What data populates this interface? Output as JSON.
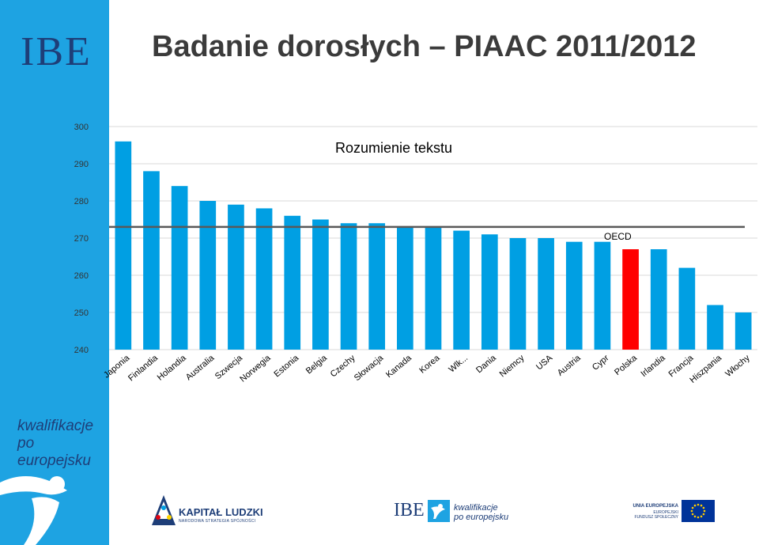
{
  "slide": {
    "title": "Badanie dorosłych – PIAAC 2011/2012",
    "logo_text": "IBE",
    "brand_line1": "kwalifikacje",
    "brand_line2": "po europejsku"
  },
  "footer": {
    "kapital_title": "KAPITAŁ LUDZKI",
    "kapital_sub": "NARODOWA STRATEGIA SPÓJNOŚCI",
    "ibe_text": "IBE",
    "kp_line1": "kwalifikacje",
    "kp_line2": "po europejsku",
    "ue_title": "UNIA EUROPEJSKA",
    "ue_line1": "EUROPEJSKI",
    "ue_line2": "FUNDUSZ SPOŁECZNY"
  },
  "colors": {
    "bar": "#009fe3",
    "highlight": "#ff0000",
    "oecd_line": "#595959",
    "sidebar": "#1ea3e2",
    "brand": "#1e3e78"
  },
  "chart_data": {
    "type": "bar",
    "title": "Rozumienie tekstu",
    "categories": [
      "Japonia",
      "Finlandia",
      "Holandia",
      "Australia",
      "Szwecja",
      "Norwegia",
      "Estonia",
      "Belgia",
      "Czechy",
      "Słowacja",
      "Kanada",
      "Korea",
      "Wlk...",
      "Dania",
      "Niemcy",
      "USA",
      "Austria",
      "Cypr",
      "Polska",
      "Irlandia",
      "Francja",
      "Hiszpania",
      "Włochy"
    ],
    "values": [
      296,
      288,
      284,
      280,
      279,
      278,
      276,
      275,
      274,
      274,
      273,
      273,
      272,
      271,
      270,
      270,
      269,
      269,
      267,
      267,
      262,
      252,
      250
    ],
    "highlight_category": "Polska",
    "ylim": [
      240,
      300
    ],
    "yticks": [
      240,
      250,
      260,
      270,
      280,
      290,
      300
    ],
    "grid": true,
    "reference_line": {
      "label": "OECD",
      "value": 273
    }
  }
}
